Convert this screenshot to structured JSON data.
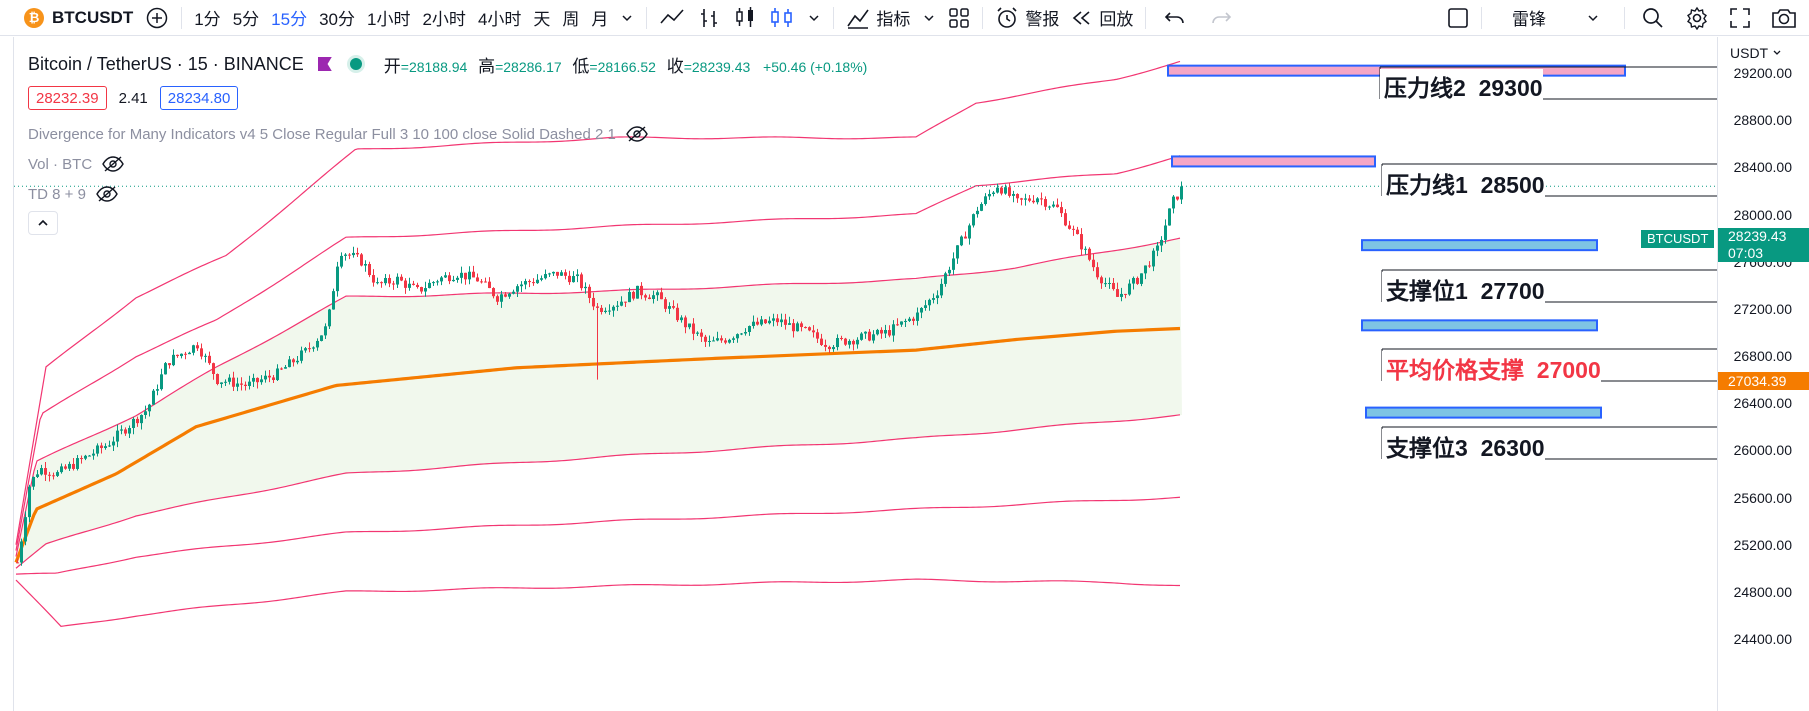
{
  "toolbar": {
    "symbol": "BTCUSDT",
    "logo_glyph": "₿",
    "intervals": [
      "1分",
      "5分",
      "15分",
      "30分",
      "1小时",
      "2小时",
      "4小时",
      "天",
      "周",
      "月"
    ],
    "active_interval": "15分",
    "indicators_label": "指标",
    "alert_label": "警报",
    "replay_label": "回放",
    "layout_name": "雷锋"
  },
  "legend": {
    "title": "Bitcoin / TetherUS · 15 · BINANCE",
    "open_label": "开",
    "open": "=28188.94",
    "high_label": "高",
    "high": "=28286.17",
    "low_label": "低",
    "low": "=28166.52",
    "close_label": "收",
    "close": "=28239.43",
    "change": "+50.46 (+0.18%)",
    "bid": "28232.39",
    "spread": "2.41",
    "ask": "28234.80",
    "indicators": [
      "Divergence for Many Indicators v4 5 Close Regular Full 3 10 100 close Solid Dashed 2 1",
      "Vol · BTC",
      "TD 8 + 9"
    ]
  },
  "price_scale": {
    "currency": "USDT",
    "ticks": [
      "29200.00",
      "28800.00",
      "28400.00",
      "28000.00",
      "27600.00",
      "27200.00",
      "26800.00",
      "26400.00",
      "26000.00",
      "25600.00",
      "25200.00",
      "24800.00",
      "24400.00"
    ],
    "last_price": "28239.43",
    "countdown": "07:03",
    "avg_price": "27034.39",
    "symbol_tag": "BTCUSDT"
  },
  "annotations": [
    {
      "label": "压力线2",
      "value": "29300"
    },
    {
      "label": "压力线1",
      "value": "28500"
    },
    {
      "label": "支撑位1",
      "value": "27700"
    },
    {
      "label": "平均价格支撑",
      "value": "27000"
    },
    {
      "label": "支撑位3",
      "value": "26300"
    }
  ],
  "chart_data": {
    "type": "candlestick",
    "symbol": "BTCUSDT",
    "timeframe": "15",
    "ylim": [
      24400,
      29400
    ],
    "last_price": 28239.43,
    "open": 28188.94,
    "high": 28286.17,
    "low": 28166.52,
    "close": 28239.43,
    "close_path": [
      [
        0,
        25050
      ],
      [
        5,
        25300
      ],
      [
        12,
        25700
      ],
      [
        22,
        25850
      ],
      [
        40,
        25800
      ],
      [
        70,
        25950
      ],
      [
        90,
        26050
      ],
      [
        110,
        26200
      ],
      [
        130,
        26350
      ],
      [
        150,
        26750
      ],
      [
        180,
        26900
      ],
      [
        200,
        26600
      ],
      [
        230,
        26550
      ],
      [
        260,
        26650
      ],
      [
        290,
        26850
      ],
      [
        310,
        27050
      ],
      [
        322,
        27700
      ],
      [
        345,
        27600
      ],
      [
        360,
        27400
      ],
      [
        380,
        27450
      ],
      [
        400,
        27350
      ],
      [
        420,
        27450
      ],
      [
        440,
        27500
      ],
      [
        460,
        27450
      ],
      [
        480,
        27300
      ],
      [
        500,
        27400
      ],
      [
        520,
        27450
      ],
      [
        540,
        27500
      ],
      [
        560,
        27450
      ],
      [
        580,
        27200
      ],
      [
        600,
        27250
      ],
      [
        620,
        27350
      ],
      [
        640,
        27300
      ],
      [
        670,
        27050
      ],
      [
        690,
        26900
      ],
      [
        710,
        26950
      ],
      [
        730,
        27050
      ],
      [
        760,
        27100
      ],
      [
        790,
        27000
      ],
      [
        810,
        26900
      ],
      [
        840,
        26950
      ],
      [
        870,
        27000
      ],
      [
        900,
        27150
      ],
      [
        920,
        27350
      ],
      [
        940,
        27700
      ],
      [
        960,
        28050
      ],
      [
        980,
        28250
      ],
      [
        1000,
        28100
      ],
      [
        1020,
        28150
      ],
      [
        1040,
        28050
      ],
      [
        1060,
        27800
      ],
      [
        1080,
        27500
      ],
      [
        1100,
        27300
      ],
      [
        1120,
        27450
      ],
      [
        1140,
        27700
      ],
      [
        1155,
        28100
      ],
      [
        1166,
        28239
      ]
    ],
    "bands": [
      {
        "name": "avg",
        "color": "#f57c00",
        "points": [
          [
            0,
            25050
          ],
          [
            20,
            25500
          ],
          [
            100,
            25800
          ],
          [
            180,
            26200
          ],
          [
            320,
            26550
          ],
          [
            500,
            26700
          ],
          [
            700,
            26780
          ],
          [
            900,
            26850
          ],
          [
            1000,
            26940
          ],
          [
            1100,
            27010
          ],
          [
            1166,
            27034
          ]
        ]
      },
      {
        "name": "upper1",
        "color": "#f23672",
        "points": [
          [
            0,
            25100
          ],
          [
            20,
            25900
          ],
          [
            120,
            26300
          ],
          [
            200,
            26700
          ],
          [
            330,
            27300
          ],
          [
            600,
            27350
          ],
          [
            900,
            27450
          ],
          [
            1000,
            27550
          ],
          [
            1100,
            27700
          ],
          [
            1166,
            27800
          ]
        ]
      },
      {
        "name": "upper2",
        "color": "#f23672",
        "points": [
          [
            0,
            25150
          ],
          [
            25,
            26300
          ],
          [
            120,
            26800
          ],
          [
            200,
            27100
          ],
          [
            330,
            27800
          ],
          [
            600,
            27900
          ],
          [
            900,
            28000
          ],
          [
            960,
            28250
          ],
          [
            1100,
            28350
          ],
          [
            1166,
            28500
          ]
        ]
      },
      {
        "name": "upper3",
        "color": "#f23672",
        "points": [
          [
            0,
            25200
          ],
          [
            30,
            26700
          ],
          [
            120,
            27300
          ],
          [
            210,
            27650
          ],
          [
            340,
            28550
          ],
          [
            600,
            28650
          ],
          [
            900,
            28650
          ],
          [
            960,
            28950
          ],
          [
            1100,
            29150
          ],
          [
            1166,
            29300
          ]
        ]
      },
      {
        "name": "lower1",
        "color": "#f23672",
        "points": [
          [
            0,
            25000
          ],
          [
            30,
            25200
          ],
          [
            120,
            25450
          ],
          [
            330,
            25800
          ],
          [
            600,
            25950
          ],
          [
            900,
            26100
          ],
          [
            1100,
            26250
          ],
          [
            1166,
            26300
          ]
        ]
      },
      {
        "name": "lower2",
        "color": "#f23672",
        "points": [
          [
            0,
            24950
          ],
          [
            40,
            24950
          ],
          [
            120,
            25100
          ],
          [
            330,
            25300
          ],
          [
            600,
            25400
          ],
          [
            900,
            25500
          ],
          [
            1100,
            25580
          ],
          [
            1166,
            25600
          ]
        ]
      },
      {
        "name": "lower3",
        "color": "#f23672",
        "points": [
          [
            0,
            24900
          ],
          [
            45,
            24500
          ],
          [
            120,
            24600
          ],
          [
            330,
            24800
          ],
          [
            600,
            24850
          ],
          [
            900,
            24900
          ],
          [
            1100,
            24880
          ],
          [
            1166,
            24850
          ]
        ]
      }
    ],
    "levels": [
      {
        "label": "压力线2",
        "value": 29300
      },
      {
        "label": "压力线1",
        "value": 28500
      },
      {
        "label": "支撑位1",
        "value": 27700
      },
      {
        "label": "平均价格支撑",
        "value": 27000
      },
      {
        "label": "支撑位3",
        "value": 26300
      }
    ],
    "colors": {
      "up": "#089981",
      "down": "#f23645",
      "avg": "#f57c00",
      "band": "#f23672"
    }
  }
}
